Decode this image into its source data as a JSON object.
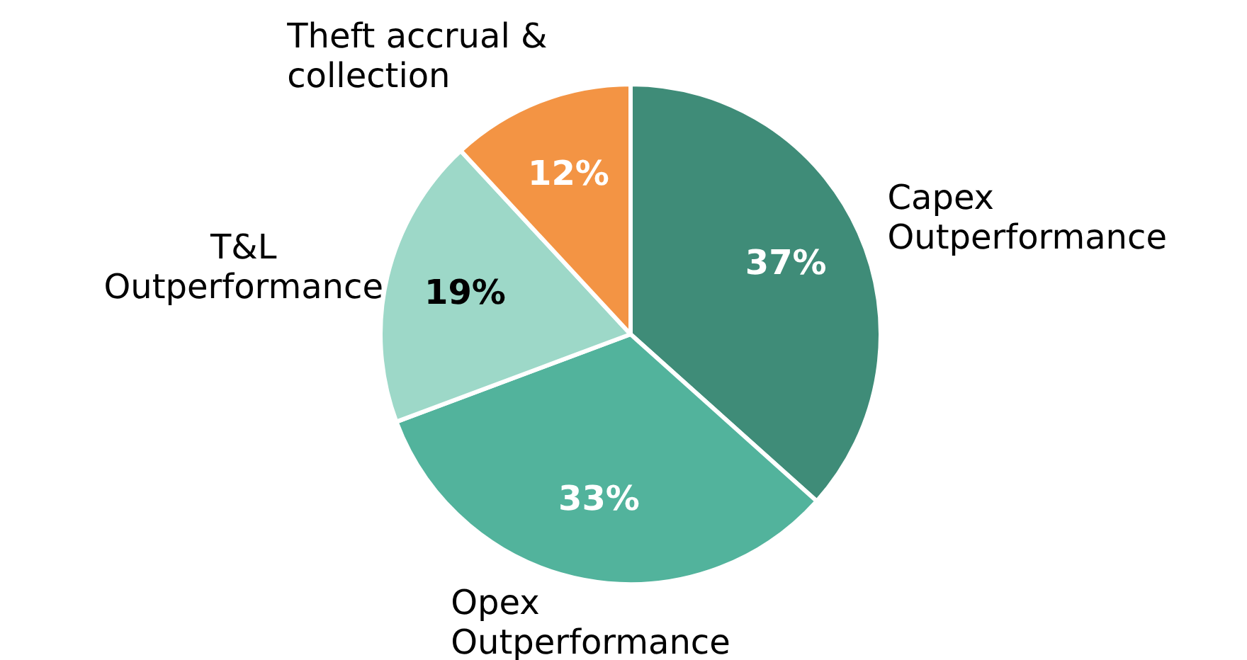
{
  "chart_data": {
    "type": "pie",
    "categories": [
      "Capex Outperformance",
      "Opex Outperformance",
      "T&L Outperformance",
      "Theft accrual & collection"
    ],
    "values": [
      37,
      33,
      19,
      12
    ],
    "colors": [
      "#3f8c78",
      "#52b39c",
      "#9dd8c8",
      "#f39444"
    ],
    "value_labels": [
      "37%",
      "33%",
      "19%",
      "12%"
    ],
    "legend": false
  }
}
